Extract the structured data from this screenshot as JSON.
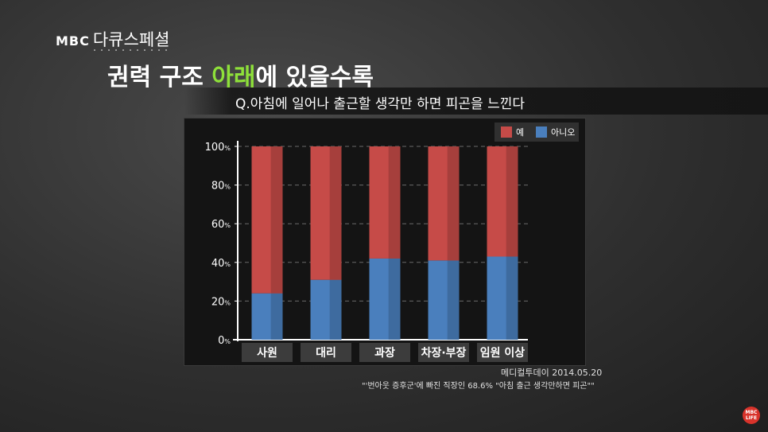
{
  "header": {
    "brand": "MBC",
    "program": "다큐스페셜",
    "title_pre": "권력 구조 ",
    "title_highlight": "아래",
    "title_post": "에 있을수록",
    "question": "Q.아침에 일어나 출근할 생각만 하면 피곤을 느낀다"
  },
  "chart_data": {
    "type": "bar",
    "stacked": true,
    "categories": [
      "사원",
      "대리",
      "과장",
      "차장·부장",
      "임원 이상"
    ],
    "series": [
      {
        "name": "아니오",
        "color": "#4a7fbd",
        "values": [
          24,
          31,
          42,
          41,
          43
        ]
      },
      {
        "name": "예",
        "color": "#c64b48",
        "values": [
          76,
          69,
          58,
          59,
          57
        ]
      }
    ],
    "legend": [
      "예",
      "아니오"
    ],
    "legend_position": "top-right",
    "ylim": [
      0,
      100
    ],
    "yticks": [
      0,
      20,
      40,
      60,
      80,
      100
    ],
    "ytick_suffix": "%",
    "grid": true
  },
  "source": {
    "line1": "메디컬투데이 2014.05.20",
    "line2": "\"'번아웃 증후군'에 빠진 직장인 68.6% \"아침 출근 생각만하면 피곤\"\""
  },
  "channel": {
    "line1": "MBC",
    "line2": "LIFE"
  },
  "colors": {
    "accent": "#8ee03a",
    "yes": "#c64b48",
    "no": "#4a7fbd",
    "background": "#141414"
  }
}
